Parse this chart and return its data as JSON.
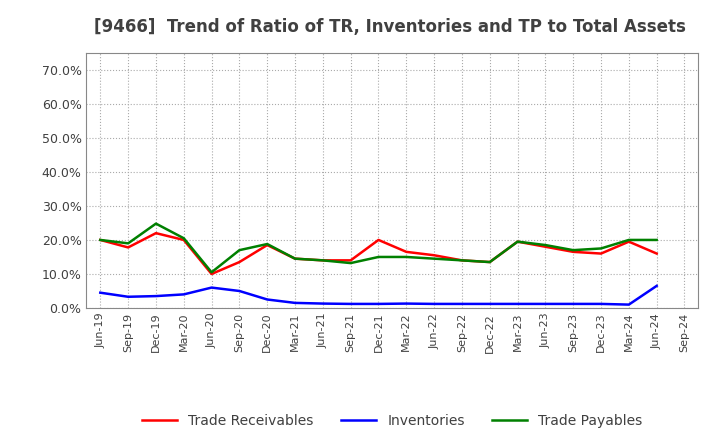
{
  "title": "[9466]  Trend of Ratio of TR, Inventories and TP to Total Assets",
  "x_labels": [
    "Jun-19",
    "Sep-19",
    "Dec-19",
    "Mar-20",
    "Jun-20",
    "Sep-20",
    "Dec-20",
    "Mar-21",
    "Jun-21",
    "Sep-21",
    "Dec-21",
    "Mar-22",
    "Jun-22",
    "Sep-22",
    "Dec-22",
    "Mar-23",
    "Jun-23",
    "Sep-23",
    "Dec-23",
    "Mar-24",
    "Jun-24",
    "Sep-24"
  ],
  "trade_receivables": [
    0.2,
    0.178,
    0.22,
    0.2,
    0.1,
    0.135,
    0.185,
    0.145,
    0.14,
    0.14,
    0.2,
    0.165,
    0.155,
    0.14,
    0.135,
    0.195,
    0.18,
    0.165,
    0.16,
    0.195,
    0.16,
    null
  ],
  "inventories": [
    0.045,
    0.033,
    0.035,
    0.04,
    0.06,
    0.05,
    0.025,
    0.015,
    0.013,
    0.012,
    0.012,
    0.013,
    0.012,
    0.012,
    0.012,
    0.012,
    0.012,
    0.012,
    0.012,
    0.01,
    0.065,
    null
  ],
  "trade_payables": [
    0.2,
    0.19,
    0.248,
    0.205,
    0.105,
    0.17,
    0.188,
    0.145,
    0.14,
    0.132,
    0.15,
    0.15,
    0.145,
    0.14,
    0.135,
    0.195,
    0.185,
    0.17,
    0.175,
    0.2,
    0.2,
    null
  ],
  "tr_color": "#ff0000",
  "inv_color": "#0000ff",
  "tp_color": "#008000",
  "ylim": [
    0.0,
    0.75
  ],
  "yticks": [
    0.0,
    0.1,
    0.2,
    0.3,
    0.4,
    0.5,
    0.6,
    0.7
  ],
  "ytick_labels": [
    "0.0%",
    "10.0%",
    "20.0%",
    "30.0%",
    "40.0%",
    "50.0%",
    "60.0%",
    "70.0%"
  ],
  "legend_labels": [
    "Trade Receivables",
    "Inventories",
    "Trade Payables"
  ],
  "bg_color": "#ffffff",
  "plot_bg_color": "#ffffff",
  "grid_color": "#aaaaaa",
  "title_color": "#404040",
  "tick_color": "#404040"
}
